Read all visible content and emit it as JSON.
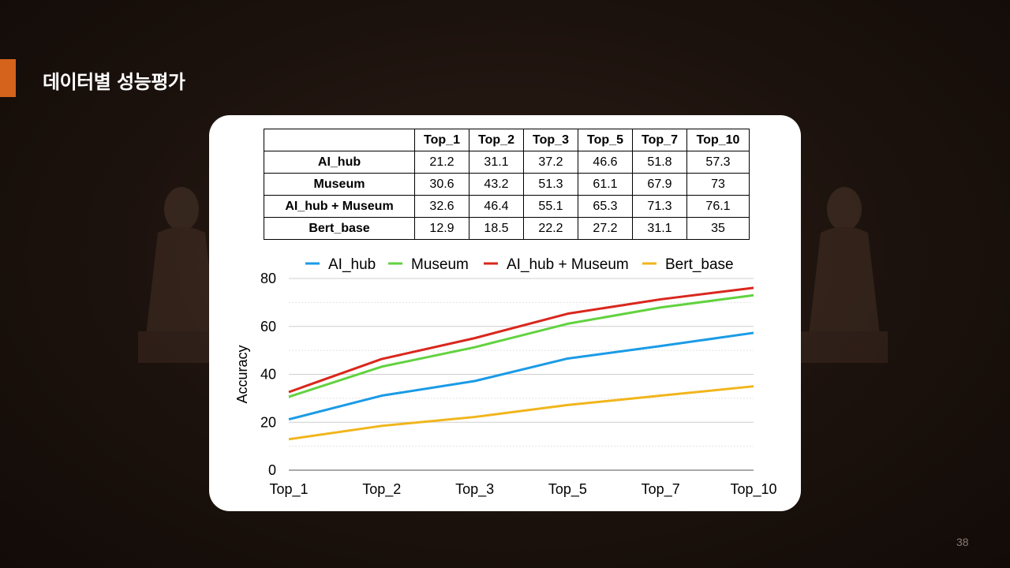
{
  "slide": {
    "title": "데이터별 성능평가",
    "page_number": "38"
  },
  "table": {
    "header": [
      "",
      "Top_1",
      "Top_2",
      "Top_3",
      "Top_5",
      "Top_7",
      "Top_10"
    ],
    "rows": [
      {
        "label": "AI_hub",
        "values": [
          "21.2",
          "31.1",
          "37.2",
          "46.6",
          "51.8",
          "57.3"
        ]
      },
      {
        "label": "Museum",
        "values": [
          "30.6",
          "43.2",
          "51.3",
          "61.1",
          "67.9",
          "73"
        ]
      },
      {
        "label": "AI_hub + Museum",
        "values": [
          "32.6",
          "46.4",
          "55.1",
          "65.3",
          "71.3",
          "76.1"
        ]
      },
      {
        "label": "Bert_base",
        "values": [
          "12.9",
          "18.5",
          "22.2",
          "27.2",
          "31.1",
          "35"
        ]
      }
    ]
  },
  "chart_data": {
    "type": "line",
    "categories": [
      "Top_1",
      "Top_2",
      "Top_3",
      "Top_5",
      "Top_7",
      "Top_10"
    ],
    "series": [
      {
        "name": "AI_hub",
        "color": "#1a9be6",
        "values": [
          21.2,
          31.1,
          37.2,
          46.6,
          51.8,
          57.3
        ]
      },
      {
        "name": "Museum",
        "color": "#62d23f",
        "values": [
          30.6,
          43.2,
          51.3,
          61.1,
          67.9,
          73
        ]
      },
      {
        "name": "AI_hub + Museum",
        "color": "#d9271d",
        "values": [
          32.6,
          46.4,
          55.1,
          65.3,
          71.3,
          76.1
        ]
      },
      {
        "name": "Bert_base",
        "color": "#f1b51c",
        "values": [
          12.9,
          18.5,
          22.2,
          27.2,
          31.1,
          35
        ]
      }
    ],
    "ylabel": "Accuracy",
    "ylim": [
      0,
      80
    ],
    "yticks": [
      "0",
      "20",
      "40",
      "60",
      "80"
    ],
    "grid": true,
    "legend": "top"
  }
}
